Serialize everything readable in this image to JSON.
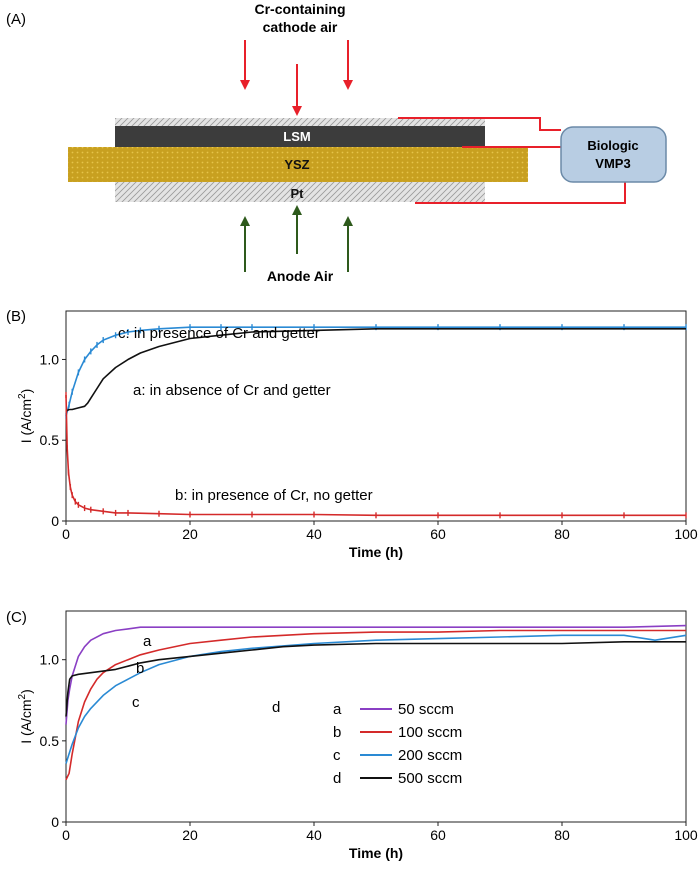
{
  "panels": {
    "a": "(A)",
    "b": "(B)",
    "c": "(C)"
  },
  "diagram": {
    "cathode_air": [
      "Cr-containing",
      "cathode air"
    ],
    "anode_air": "Anode Air",
    "layers": {
      "lsm": "LSM",
      "ysz": "YSZ",
      "pt": "Pt"
    },
    "instrument": [
      "Biologic",
      "VMP3"
    ],
    "colors": {
      "arrow_top": "#e8202a",
      "arrow_bottom": "#2e5a1c",
      "lsm": "#3c3c3c",
      "ysz": "#c8a020",
      "wire": "#e8202a",
      "instrument_fill": "#b8cde3",
      "instrument_stroke": "#6b8aa8"
    }
  },
  "chart_data": [
    {
      "type": "line",
      "xlabel": "Time (h)",
      "ylabel_main": "I (A/cm",
      "ylabel_sup": "2",
      "ylabel_tail": ")",
      "xlim": [
        0,
        100
      ],
      "ylim": [
        0,
        1.3
      ],
      "xticks": [
        0,
        20,
        40,
        60,
        80,
        100
      ],
      "yticks": [
        0,
        0.5,
        1.0
      ],
      "ytick_labels": [
        "0",
        "0.5",
        "1.0"
      ],
      "series": [
        {
          "label": "c: in presence of Cr and getter",
          "color": "#2a8ad4",
          "markers": true,
          "x": [
            0,
            0.5,
            1,
            2,
            3,
            4,
            5,
            6,
            8,
            10,
            12,
            15,
            20,
            25,
            30,
            40,
            50,
            60,
            70,
            80,
            90,
            100
          ],
          "y": [
            0.65,
            0.72,
            0.8,
            0.92,
            1.0,
            1.05,
            1.09,
            1.12,
            1.15,
            1.17,
            1.18,
            1.19,
            1.2,
            1.2,
            1.2,
            1.2,
            1.2,
            1.2,
            1.2,
            1.2,
            1.2,
            1.2
          ]
        },
        {
          "label": "a: in absence of Cr and getter",
          "color": "#111111",
          "markers": false,
          "x": [
            0,
            0.5,
            1,
            2,
            3,
            3.5,
            4,
            5,
            6,
            8,
            10,
            12,
            15,
            20,
            25,
            30,
            40,
            50,
            60,
            70,
            80,
            90,
            100
          ],
          "y": [
            0.68,
            0.69,
            0.69,
            0.7,
            0.71,
            0.73,
            0.76,
            0.82,
            0.88,
            0.95,
            1.0,
            1.04,
            1.08,
            1.13,
            1.15,
            1.17,
            1.18,
            1.19,
            1.19,
            1.19,
            1.19,
            1.19,
            1.19
          ]
        },
        {
          "label": "b: in presence of Cr, no getter",
          "color": "#d42a2a",
          "markers": true,
          "x": [
            0,
            0.2,
            0.4,
            0.7,
            1,
            1.5,
            2,
            3,
            4,
            6,
            8,
            10,
            15,
            20,
            30,
            40,
            50,
            60,
            70,
            80,
            90,
            100
          ],
          "y": [
            0.78,
            0.45,
            0.3,
            0.21,
            0.16,
            0.12,
            0.1,
            0.08,
            0.07,
            0.06,
            0.05,
            0.05,
            0.045,
            0.04,
            0.04,
            0.04,
            0.035,
            0.035,
            0.035,
            0.035,
            0.035,
            0.035
          ]
        }
      ]
    },
    {
      "type": "line",
      "xlabel": "Time (h)",
      "ylabel_main": "I (A/cm",
      "ylabel_sup": "2",
      "ylabel_tail": ")",
      "xlim": [
        0,
        100
      ],
      "ylim": [
        0,
        1.3
      ],
      "xticks": [
        0,
        20,
        40,
        60,
        80,
        100
      ],
      "yticks": [
        0,
        0.5,
        1.0
      ],
      "ytick_labels": [
        "0",
        "0.5",
        "1.0"
      ],
      "legend_placement": "center-right",
      "series": [
        {
          "name": "50 sccm",
          "letter": "a",
          "color": "#8a3fc4",
          "x": [
            0,
            0.3,
            0.6,
            1,
            2,
            3,
            4,
            6,
            8,
            10,
            12,
            15,
            20,
            30,
            40,
            50,
            60,
            70,
            80,
            90,
            100
          ],
          "y": [
            0.6,
            0.75,
            0.82,
            0.9,
            1.02,
            1.08,
            1.12,
            1.16,
            1.18,
            1.19,
            1.2,
            1.2,
            1.2,
            1.2,
            1.2,
            1.2,
            1.2,
            1.2,
            1.2,
            1.2,
            1.21
          ]
        },
        {
          "name": "100 sccm",
          "letter": "b",
          "color": "#d42a2a",
          "x": [
            0,
            0.5,
            1,
            2,
            3,
            4,
            5,
            6,
            8,
            10,
            12,
            15,
            20,
            25,
            30,
            40,
            50,
            60,
            70,
            80,
            90,
            100
          ],
          "y": [
            0.26,
            0.3,
            0.42,
            0.62,
            0.74,
            0.82,
            0.88,
            0.92,
            0.97,
            1.0,
            1.03,
            1.06,
            1.1,
            1.12,
            1.14,
            1.16,
            1.17,
            1.17,
            1.18,
            1.18,
            1.18,
            1.18
          ]
        },
        {
          "name": "200 sccm",
          "letter": "c",
          "color": "#2a8ad4",
          "x": [
            0,
            0.5,
            1,
            2,
            3,
            4,
            5,
            6,
            8,
            10,
            12,
            15,
            20,
            25,
            30,
            40,
            50,
            60,
            70,
            80,
            90,
            95,
            100
          ],
          "y": [
            0.36,
            0.42,
            0.48,
            0.58,
            0.65,
            0.7,
            0.74,
            0.78,
            0.84,
            0.88,
            0.92,
            0.97,
            1.02,
            1.05,
            1.07,
            1.1,
            1.12,
            1.13,
            1.14,
            1.15,
            1.15,
            1.12,
            1.15
          ]
        },
        {
          "name": "500 sccm",
          "letter": "d",
          "color": "#111111",
          "x": [
            0,
            0.3,
            0.6,
            1,
            2,
            4,
            6,
            8,
            10,
            12,
            15,
            20,
            25,
            30,
            35,
            40,
            50,
            60,
            70,
            80,
            90,
            100
          ],
          "y": [
            0.65,
            0.8,
            0.88,
            0.9,
            0.91,
            0.92,
            0.93,
            0.94,
            0.96,
            0.98,
            1.0,
            1.02,
            1.04,
            1.06,
            1.08,
            1.09,
            1.1,
            1.1,
            1.1,
            1.1,
            1.11,
            1.11
          ]
        }
      ]
    }
  ]
}
